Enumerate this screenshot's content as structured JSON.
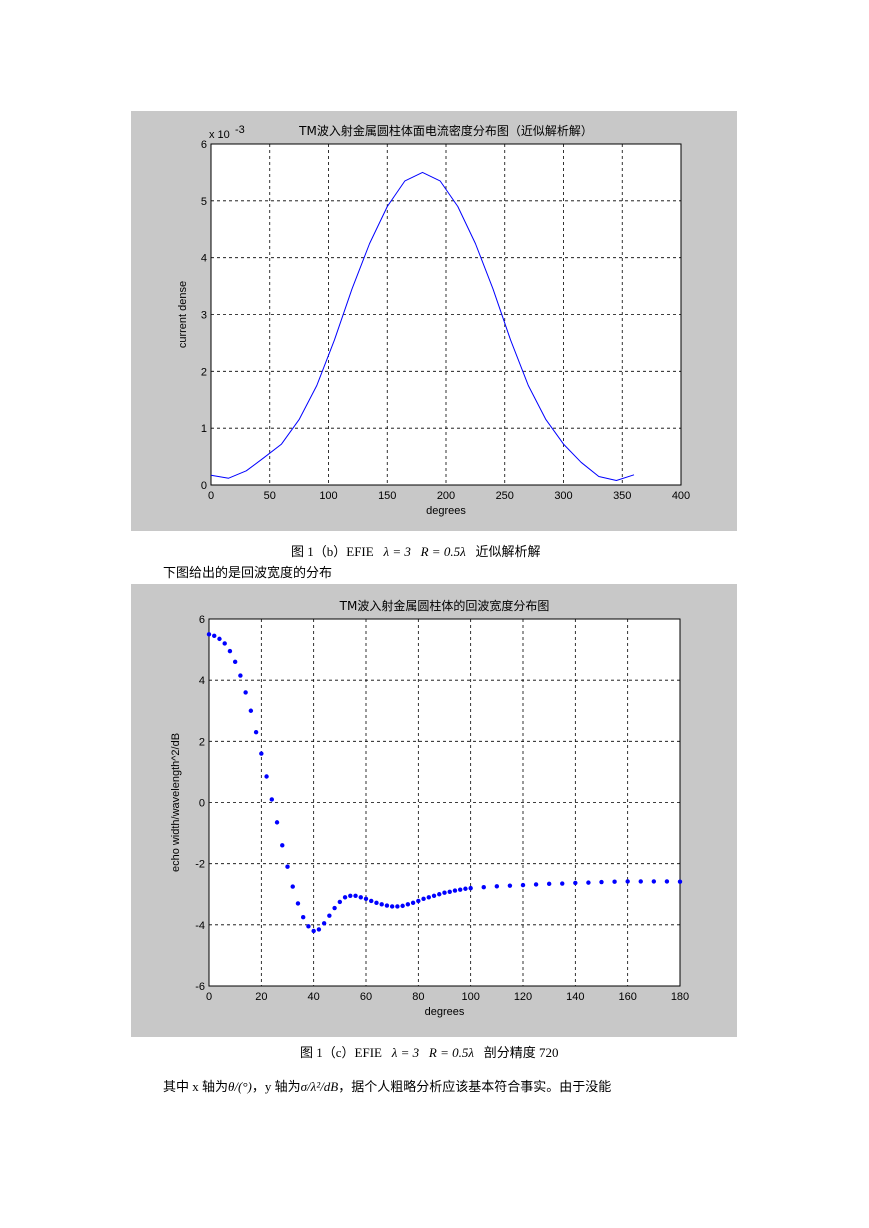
{
  "figures": [
    {
      "caption": {
        "prefix": "图 1（b）EFIE",
        "eq1": "λ = 3",
        "eq2": "R = 0.5λ",
        "suffix": "近似解析解"
      }
    },
    {
      "caption": {
        "prefix": "图 1（c）EFIE",
        "eq1": "λ = 3",
        "eq2": "R = 0.5λ",
        "suffix": "剖分精度 720"
      }
    }
  ],
  "paragraph_between": "下图给出的是回波宽度的分布",
  "paragraph_bottom": {
    "t1": "其中 x 轴为",
    "m1": "θ/(°)",
    "t2": "，y 轴为",
    "m2": "σ/λ²/dB",
    "t3": "，据个人粗略分析应该基本符合事实。由于没能"
  },
  "chart_data": [
    {
      "type": "line",
      "title": "TM波入射金属圆柱体面电流密度分布图（近似解析解）",
      "xlabel": "degrees",
      "ylabel": "current dense",
      "exponent_label": "x 10",
      "exponent_power": "-3",
      "xlim": [
        0,
        400
      ],
      "ylim": [
        0,
        6
      ],
      "xticks": [
        0,
        50,
        100,
        150,
        200,
        250,
        300,
        350,
        400
      ],
      "yticks": [
        0,
        1,
        2,
        3,
        4,
        5,
        6
      ],
      "grid": true,
      "color": "#0000ff",
      "x": [
        0,
        15,
        30,
        45,
        60,
        75,
        90,
        105,
        120,
        135,
        150,
        165,
        180,
        195,
        210,
        225,
        240,
        255,
        270,
        285,
        300,
        315,
        330,
        345,
        360
      ],
      "y": [
        0.17,
        0.12,
        0.25,
        0.48,
        0.72,
        1.15,
        1.75,
        2.55,
        3.45,
        4.25,
        4.9,
        5.35,
        5.5,
        5.35,
        4.9,
        4.25,
        3.45,
        2.55,
        1.75,
        1.15,
        0.72,
        0.4,
        0.15,
        0.08,
        0.18
      ]
    },
    {
      "type": "scatter",
      "title": "TM波入射金属圆柱体的回波宽度分布图",
      "xlabel": "degrees",
      "ylabel": "echo width/wavelength^2/dB",
      "xlim": [
        0,
        180
      ],
      "ylim": [
        -6,
        6
      ],
      "xticks": [
        0,
        20,
        40,
        60,
        80,
        100,
        120,
        140,
        160,
        180
      ],
      "yticks": [
        -6,
        -4,
        -2,
        0,
        2,
        4,
        6
      ],
      "grid": true,
      "color": "#0000ff",
      "x": [
        0,
        2,
        4,
        6,
        8,
        10,
        12,
        14,
        16,
        18,
        20,
        22,
        24,
        26,
        28,
        30,
        32,
        34,
        36,
        38,
        40,
        42,
        44,
        46,
        48,
        50,
        52,
        54,
        56,
        58,
        60,
        62,
        64,
        66,
        68,
        70,
        72,
        74,
        76,
        78,
        80,
        82,
        84,
        86,
        88,
        90,
        92,
        94,
        96,
        98,
        100,
        105,
        110,
        115,
        120,
        125,
        130,
        135,
        140,
        145,
        150,
        155,
        160,
        165,
        170,
        175,
        180
      ],
      "y": [
        5.5,
        5.45,
        5.35,
        5.2,
        4.95,
        4.6,
        4.15,
        3.6,
        3.0,
        2.3,
        1.6,
        0.85,
        0.1,
        -0.65,
        -1.4,
        -2.1,
        -2.75,
        -3.3,
        -3.75,
        -4.05,
        -4.2,
        -4.15,
        -3.95,
        -3.7,
        -3.45,
        -3.25,
        -3.1,
        -3.05,
        -3.05,
        -3.1,
        -3.15,
        -3.22,
        -3.28,
        -3.33,
        -3.37,
        -3.4,
        -3.4,
        -3.38,
        -3.33,
        -3.28,
        -3.22,
        -3.15,
        -3.1,
        -3.05,
        -3.0,
        -2.95,
        -2.92,
        -2.88,
        -2.85,
        -2.82,
        -2.8,
        -2.77,
        -2.74,
        -2.72,
        -2.7,
        -2.68,
        -2.66,
        -2.65,
        -2.63,
        -2.62,
        -2.6,
        -2.59,
        -2.58,
        -2.58,
        -2.58,
        -2.58,
        -2.59
      ]
    }
  ]
}
